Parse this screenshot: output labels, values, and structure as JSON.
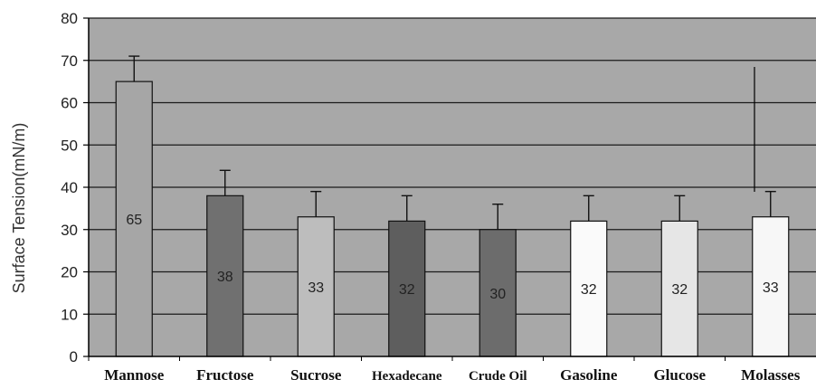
{
  "chart_data": {
    "type": "bar",
    "title": "",
    "xlabel": "",
    "ylabel": "Surface Tension(mN/m)",
    "ylim": [
      0,
      80
    ],
    "yticks": [
      0,
      10,
      20,
      30,
      40,
      50,
      60,
      70,
      80
    ],
    "grid": true,
    "categories": [
      "Mannose",
      "Fructose",
      "Sucrose",
      "Hexadecane",
      "Crude Oil",
      "Gasoline",
      "Glucose",
      "Molasses"
    ],
    "values": [
      65,
      38,
      33,
      32,
      30,
      32,
      32,
      33
    ],
    "error_upper": [
      71,
      44,
      39,
      38,
      36,
      38,
      38,
      39
    ],
    "data_labels": [
      "65",
      "38",
      "33",
      "32",
      "30",
      "32",
      "32",
      "33"
    ],
    "bar_colors": [
      "#a6a6a6",
      "#707070",
      "#bdbdbd",
      "#5e5e5e",
      "#6c6c6c",
      "#fafafa",
      "#e6e6e6",
      "#f7f7f7"
    ],
    "plot_background": "#a8a8a8"
  }
}
